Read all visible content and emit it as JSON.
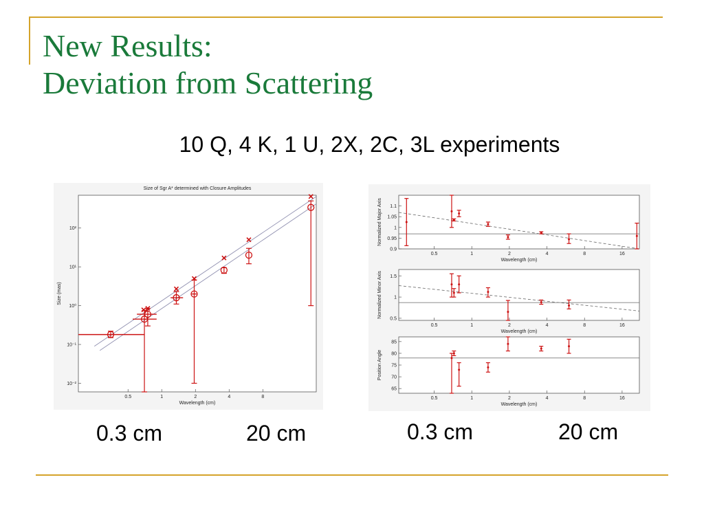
{
  "title_line1": "New Results:",
  "title_line2": "Deviation from Scattering",
  "subtitle": "10 Q, 4 K, 1 U, 2X, 2C, 3L experiments",
  "captions": {
    "left_start": "0.3 cm",
    "left_end": "20 cm",
    "right_start": "0.3 cm",
    "right_end": "20 cm"
  },
  "colors": {
    "title": "#1a7a3a",
    "rule": "#d4a32a",
    "data": "#cc1111",
    "fit": "#9090b0"
  },
  "chart_data": [
    {
      "type": "scatter",
      "title": "Size of Sgr A* determined with Closure Amplitudes",
      "xlabel": "Wavelength (cm)",
      "ylabel": "Size (mas)",
      "xscale": "log",
      "yscale": "log",
      "xlim": [
        0.18,
        24
      ],
      "ylim": [
        0.006,
        700
      ],
      "xticks": [
        0.5,
        1,
        2,
        4,
        8
      ],
      "xtick_labels": [
        "0.5",
        "1",
        "2",
        "4",
        "8"
      ],
      "yticks": [
        0.01,
        0.1,
        1,
        10,
        100
      ],
      "ytick_labels": [
        "10⁻²",
        "10⁻¹",
        "10⁰",
        "10¹",
        "10²"
      ],
      "fit_lines": [
        {
          "x": [
            0.25,
            24
          ],
          "y": [
            0.09,
            650
          ]
        },
        {
          "x": [
            0.28,
            24
          ],
          "y": [
            0.07,
            420
          ]
        }
      ],
      "circles": [
        {
          "x": 0.35,
          "y": 0.18,
          "ylo": 0.15,
          "yhi": 0.22,
          "xlo": 0.18,
          "xhi": 0.7
        },
        {
          "x": 0.7,
          "y": 0.45,
          "ylo": 0.006,
          "yhi": 0.75,
          "xlo": 0.55,
          "xhi": 0.9
        },
        {
          "x": 0.75,
          "y": 0.6,
          "ylo": 0.3,
          "yhi": 0.85,
          "xlo": 0.6,
          "xhi": 0.9
        },
        {
          "x": 1.35,
          "y": 1.6,
          "ylo": 1.1,
          "yhi": 2.3,
          "xlo": 1.2,
          "xhi": 1.55
        },
        {
          "x": 1.95,
          "y": 2.0,
          "ylo": 0.01,
          "yhi": 4.6,
          "xlo": 1.85,
          "xhi": 2.05
        },
        {
          "x": 3.6,
          "y": 8.2,
          "ylo": 6.8,
          "yhi": 9.5
        },
        {
          "x": 6.0,
          "y": 20,
          "ylo": 12,
          "yhi": 30
        },
        {
          "x": 21.5,
          "y": 340,
          "ylo": 1.0,
          "yhi": 500
        }
      ],
      "crosses": [
        {
          "x": 0.69,
          "y": 0.78
        },
        {
          "x": 0.75,
          "y": 0.85
        },
        {
          "x": 1.35,
          "y": 2.7
        },
        {
          "x": 1.95,
          "y": 5.0
        },
        {
          "x": 3.6,
          "y": 17
        },
        {
          "x": 6.0,
          "y": 50
        },
        {
          "x": 21.5,
          "y": 650
        }
      ]
    },
    {
      "type": "scatter",
      "xlabel": "Wavelength (cm)",
      "ylabel": "Normalized Major Axis",
      "xscale": "log",
      "xlim": [
        0.26,
        22
      ],
      "ylim": [
        0.9,
        1.15
      ],
      "xticks": [
        0.5,
        1,
        2,
        4,
        8,
        16
      ],
      "xtick_labels": [
        "0.5",
        "1",
        "2",
        "4",
        "8",
        "16"
      ],
      "yticks": [
        0.9,
        0.95,
        1,
        1.05,
        1.1
      ],
      "ytick_labels": [
        "0.9",
        "0.95",
        "1",
        "1.05",
        "1.1"
      ],
      "hline": 0.97,
      "trend": {
        "x": [
          0.26,
          22
        ],
        "y": [
          1.07,
          0.9
        ]
      },
      "points": [
        {
          "x": 0.3,
          "y": 1.025,
          "ylo": 0.915,
          "yhi": 1.135
        },
        {
          "x": 0.69,
          "y": 1.075,
          "ylo": 1.0,
          "yhi": 1.15
        },
        {
          "x": 0.72,
          "y": 1.035,
          "ylo": 1.03,
          "yhi": 1.04
        },
        {
          "x": 0.79,
          "y": 1.065,
          "ylo": 1.05,
          "yhi": 1.08
        },
        {
          "x": 1.35,
          "y": 1.015,
          "ylo": 1.005,
          "yhi": 1.025
        },
        {
          "x": 1.95,
          "y": 0.955,
          "ylo": 0.945,
          "yhi": 0.965
        },
        {
          "x": 3.6,
          "y": 0.975,
          "ylo": 0.97,
          "yhi": 0.98
        },
        {
          "x": 6.0,
          "y": 0.945,
          "ylo": 0.925,
          "yhi": 0.97
        },
        {
          "x": 21.0,
          "y": 0.96,
          "ylo": 0.9,
          "yhi": 1.02
        }
      ]
    },
    {
      "type": "scatter",
      "xlabel": "Wavelength (cm)",
      "ylabel": "Normalized Minor Axis",
      "xscale": "log",
      "xlim": [
        0.26,
        22
      ],
      "ylim": [
        0.45,
        1.65
      ],
      "xticks": [
        0.5,
        1,
        2,
        4,
        8,
        16
      ],
      "xtick_labels": [
        "0.5",
        "1",
        "2",
        "4",
        "8",
        "16"
      ],
      "yticks": [
        0.5,
        1,
        1.5
      ],
      "ytick_labels": [
        "0.5",
        "1",
        "1.5"
      ],
      "hline": 0.87,
      "trend": {
        "x": [
          0.26,
          22
        ],
        "y": [
          1.27,
          0.67
        ]
      },
      "points": [
        {
          "x": 0.69,
          "y": 1.3,
          "ylo": 1.0,
          "yhi": 1.55
        },
        {
          "x": 0.72,
          "y": 1.1,
          "ylo": 1.0,
          "yhi": 1.2
        },
        {
          "x": 0.79,
          "y": 1.3,
          "ylo": 1.1,
          "yhi": 1.5
        },
        {
          "x": 1.35,
          "y": 1.12,
          "ylo": 1.0,
          "yhi": 1.22
        },
        {
          "x": 1.95,
          "y": 0.65,
          "ylo": 0.45,
          "yhi": 0.92
        },
        {
          "x": 3.6,
          "y": 0.88,
          "ylo": 0.83,
          "yhi": 0.93
        },
        {
          "x": 6.0,
          "y": 0.8,
          "ylo": 0.72,
          "yhi": 0.93
        }
      ]
    },
    {
      "type": "scatter",
      "xlabel": "Wavelength (cm)",
      "ylabel": "Position Angle",
      "xscale": "log",
      "xlim": [
        0.26,
        22
      ],
      "ylim": [
        63,
        87
      ],
      "xticks": [
        0.5,
        1,
        2,
        4,
        8,
        16
      ],
      "xtick_labels": [
        "0.5",
        "1",
        "2",
        "4",
        "8",
        "16"
      ],
      "yticks": [
        65,
        70,
        75,
        80,
        85
      ],
      "ytick_labels": [
        "65",
        "70",
        "75",
        "80",
        "85"
      ],
      "hline": 78,
      "points": [
        {
          "x": 0.69,
          "y": 78,
          "ylo": 63,
          "yhi": 80
        },
        {
          "x": 0.72,
          "y": 80,
          "ylo": 79,
          "yhi": 81
        },
        {
          "x": 0.79,
          "y": 73,
          "ylo": 66,
          "yhi": 76
        },
        {
          "x": 1.35,
          "y": 74,
          "ylo": 72,
          "yhi": 76
        },
        {
          "x": 1.95,
          "y": 84,
          "ylo": 81,
          "yhi": 87
        },
        {
          "x": 3.6,
          "y": 82,
          "ylo": 81,
          "yhi": 83
        },
        {
          "x": 6.0,
          "y": 83,
          "ylo": 80,
          "yhi": 86
        }
      ]
    }
  ]
}
